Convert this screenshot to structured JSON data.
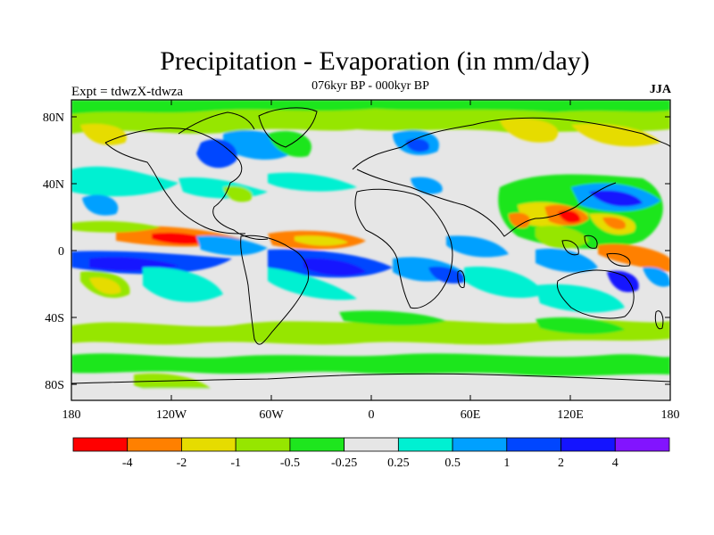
{
  "title": "Precipitation - Evaporation (in mm/day)",
  "subtitle": "076kyr BP - 000kyr BP",
  "left_label": "Expt = tdwzX-tdwza",
  "right_label": "JJA",
  "lat_ticks": [
    "80N",
    "40N",
    "0",
    "40S",
    "80S"
  ],
  "lon_ticks": [
    "180",
    "120W",
    "60W",
    "0",
    "60E",
    "120E",
    "180"
  ],
  "colorbar": {
    "colors": [
      "#ff0000",
      "#ff8000",
      "#e6dc00",
      "#96e600",
      "#1ee61e",
      "#e6e6e6",
      "#00f0d2",
      "#00a0ff",
      "#0046ff",
      "#1414ff",
      "#8214ff"
    ],
    "labels": [
      "-4",
      "-2",
      "-1",
      "-0.5",
      "-0.25",
      "0.25",
      "0.5",
      "1",
      "2",
      "4"
    ]
  }
}
